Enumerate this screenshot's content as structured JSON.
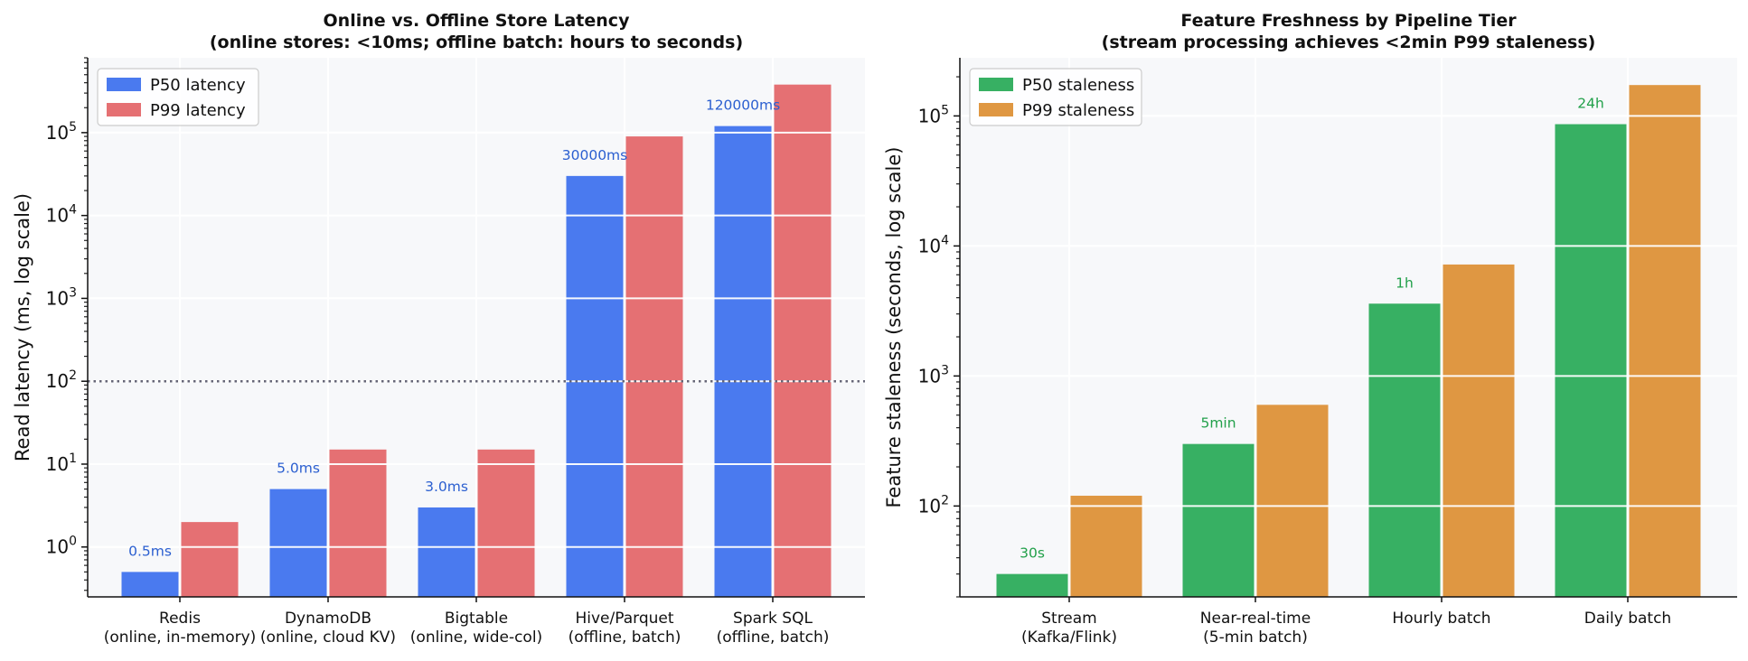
{
  "chart_data": [
    {
      "type": "bar",
      "title": "Online vs. Offline Store Latency",
      "subtitle": "(online stores: <10ms; offline batch: hours to seconds)",
      "xlabel": "",
      "ylabel": "Read latency (ms, log scale)",
      "yscale": "log",
      "ylim": [
        0.25,
        800000
      ],
      "yticks": [
        {
          "value": 1,
          "label_base": "10",
          "label_exp": "0"
        },
        {
          "value": 10,
          "label_base": "10",
          "label_exp": "1"
        },
        {
          "value": 100,
          "label_base": "10",
          "label_exp": "2"
        },
        {
          "value": 1000,
          "label_base": "10",
          "label_exp": "3"
        },
        {
          "value": 10000,
          "label_base": "10",
          "label_exp": "4"
        },
        {
          "value": 100000,
          "label_base": "10",
          "label_exp": "5"
        }
      ],
      "categories": [
        [
          "Redis",
          "(online, in-memory)"
        ],
        [
          "DynamoDB",
          "(online, cloud KV)"
        ],
        [
          "Bigtable",
          "(online, wide-col)"
        ],
        [
          "Hive/Parquet",
          "(offline, batch)"
        ],
        [
          "Spark SQL",
          "(offline, batch)"
        ]
      ],
      "series": [
        {
          "name": "P50 latency",
          "color": "#4a7aef",
          "values": [
            0.5,
            5,
            3,
            30000,
            120000
          ]
        },
        {
          "name": "P99 latency",
          "color": "#e57073",
          "values": [
            2,
            15,
            15,
            90000,
            380000
          ]
        }
      ],
      "data_labels": [
        "0.5ms",
        "5.0ms",
        "3.0ms",
        "30000ms",
        "120000ms"
      ],
      "label_color": "#2b5fd0",
      "reference_line": {
        "value": 100,
        "style": "dotted",
        "color": "#666677"
      },
      "legend": "top-left",
      "grid": true
    },
    {
      "type": "bar",
      "title": "Feature Freshness by Pipeline Tier",
      "subtitle": "(stream processing achieves <2min P99 staleness)",
      "xlabel": "",
      "ylabel": "Feature staleness (seconds, log scale)",
      "yscale": "log",
      "ylim": [
        20,
        280000
      ],
      "yticks": [
        {
          "value": 100,
          "label_base": "10",
          "label_exp": "2"
        },
        {
          "value": 1000,
          "label_base": "10",
          "label_exp": "3"
        },
        {
          "value": 10000,
          "label_base": "10",
          "label_exp": "4"
        },
        {
          "value": 100000,
          "label_base": "10",
          "label_exp": "5"
        }
      ],
      "categories": [
        [
          "Stream",
          "(Kafka/Flink)"
        ],
        [
          "Near-real-time",
          "(5-min batch)"
        ],
        [
          "Hourly batch"
        ],
        [
          "Daily batch"
        ]
      ],
      "series": [
        {
          "name": "P50 staleness",
          "color": "#37b063",
          "values": [
            30,
            300,
            3600,
            86400
          ]
        },
        {
          "name": "P99 staleness",
          "color": "#df9742",
          "values": [
            120,
            600,
            7200,
            172800
          ]
        }
      ],
      "data_labels": [
        "30s",
        "5min",
        "1h",
        "24h"
      ],
      "label_color": "#22a04a",
      "legend": "top-left",
      "grid": true
    }
  ]
}
